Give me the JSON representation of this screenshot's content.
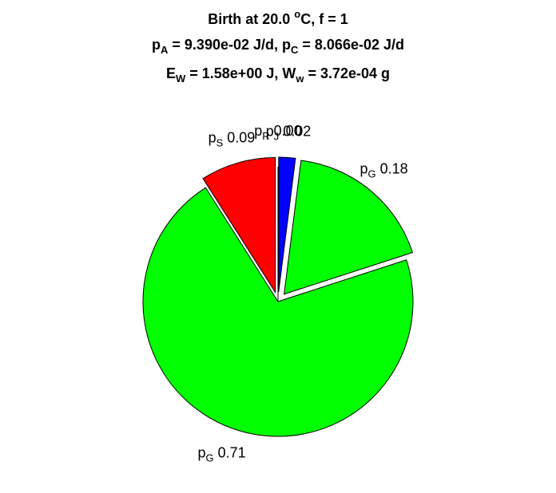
{
  "chart_data": {
    "type": "pie",
    "title": [
      [
        {
          "text": "Birth at 20.0 "
        },
        {
          "text": "o",
          "script": "sup"
        },
        {
          "text": "C, f = 1"
        }
      ],
      [
        {
          "text": "p"
        },
        {
          "text": "A",
          "script": "sub"
        },
        {
          "text": " = 9.390e-02 J/d, p"
        },
        {
          "text": "C",
          "script": "sub"
        },
        {
          "text": " = 8.066e-02 J/d"
        }
      ],
      [
        {
          "text": "E"
        },
        {
          "text": "W",
          "script": "sub"
        },
        {
          "text": " = 1.58e+00 J, W"
        },
        {
          "text": "w",
          "script": "sub"
        },
        {
          "text": " = 3.72e-04 g"
        }
      ]
    ],
    "labels": [
      [
        {
          "text": "p"
        },
        {
          "text": "S",
          "script": "sub"
        }
      ],
      [
        {
          "text": "p"
        },
        {
          "text": "G",
          "script": "sub"
        }
      ],
      [
        {
          "text": "p"
        },
        {
          "text": "G",
          "script": "sub"
        }
      ],
      [
        {
          "text": "p"
        },
        {
          "text": "J",
          "script": "sub"
        }
      ],
      [
        {
          "text": "p"
        },
        {
          "text": "R",
          "script": "sub"
        }
      ]
    ],
    "values": [
      0.09,
      0.71,
      0.18,
      0.02,
      0.0
    ],
    "value_labels": [
      "0.09",
      "0.71",
      "0.18",
      "0.02",
      "0.00"
    ],
    "colors": [
      "#ff0000",
      "#00ff00",
      "#00ff00",
      "#0000ff",
      "#00ffff"
    ],
    "explode": [
      true,
      false,
      true,
      true,
      false
    ]
  }
}
